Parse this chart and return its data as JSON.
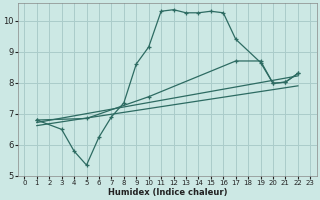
{
  "xlabel": "Humidex (Indice chaleur)",
  "background_color": "#cce8e4",
  "grid_color": "#aaccca",
  "line_color": "#2d6b62",
  "xlim": [
    -0.5,
    23.5
  ],
  "ylim": [
    5,
    10.55
  ],
  "yticks": [
    5,
    6,
    7,
    8,
    9,
    10
  ],
  "xticks": [
    0,
    1,
    2,
    3,
    4,
    5,
    6,
    7,
    8,
    9,
    10,
    11,
    12,
    13,
    14,
    15,
    16,
    17,
    18,
    19,
    20,
    21,
    22,
    23
  ],
  "line1_x": [
    1,
    3,
    4,
    5,
    6,
    7,
    8,
    9,
    10,
    11,
    12,
    13,
    14,
    15,
    16,
    17,
    19,
    20,
    21,
    22
  ],
  "line1_y": [
    6.8,
    6.5,
    5.8,
    5.35,
    6.25,
    6.9,
    7.35,
    8.6,
    9.15,
    10.3,
    10.35,
    10.25,
    10.25,
    10.3,
    10.25,
    9.4,
    8.65,
    7.98,
    8.02,
    8.3
  ],
  "line2_x": [
    1,
    5,
    10,
    17,
    19,
    20,
    21,
    22
  ],
  "line2_y": [
    6.8,
    6.85,
    7.55,
    8.7,
    8.7,
    7.98,
    8.02,
    8.3
  ],
  "line3_x": [
    1,
    22
  ],
  "line3_y": [
    6.72,
    8.22
  ],
  "line4_x": [
    1,
    22
  ],
  "line4_y": [
    6.62,
    7.9
  ]
}
